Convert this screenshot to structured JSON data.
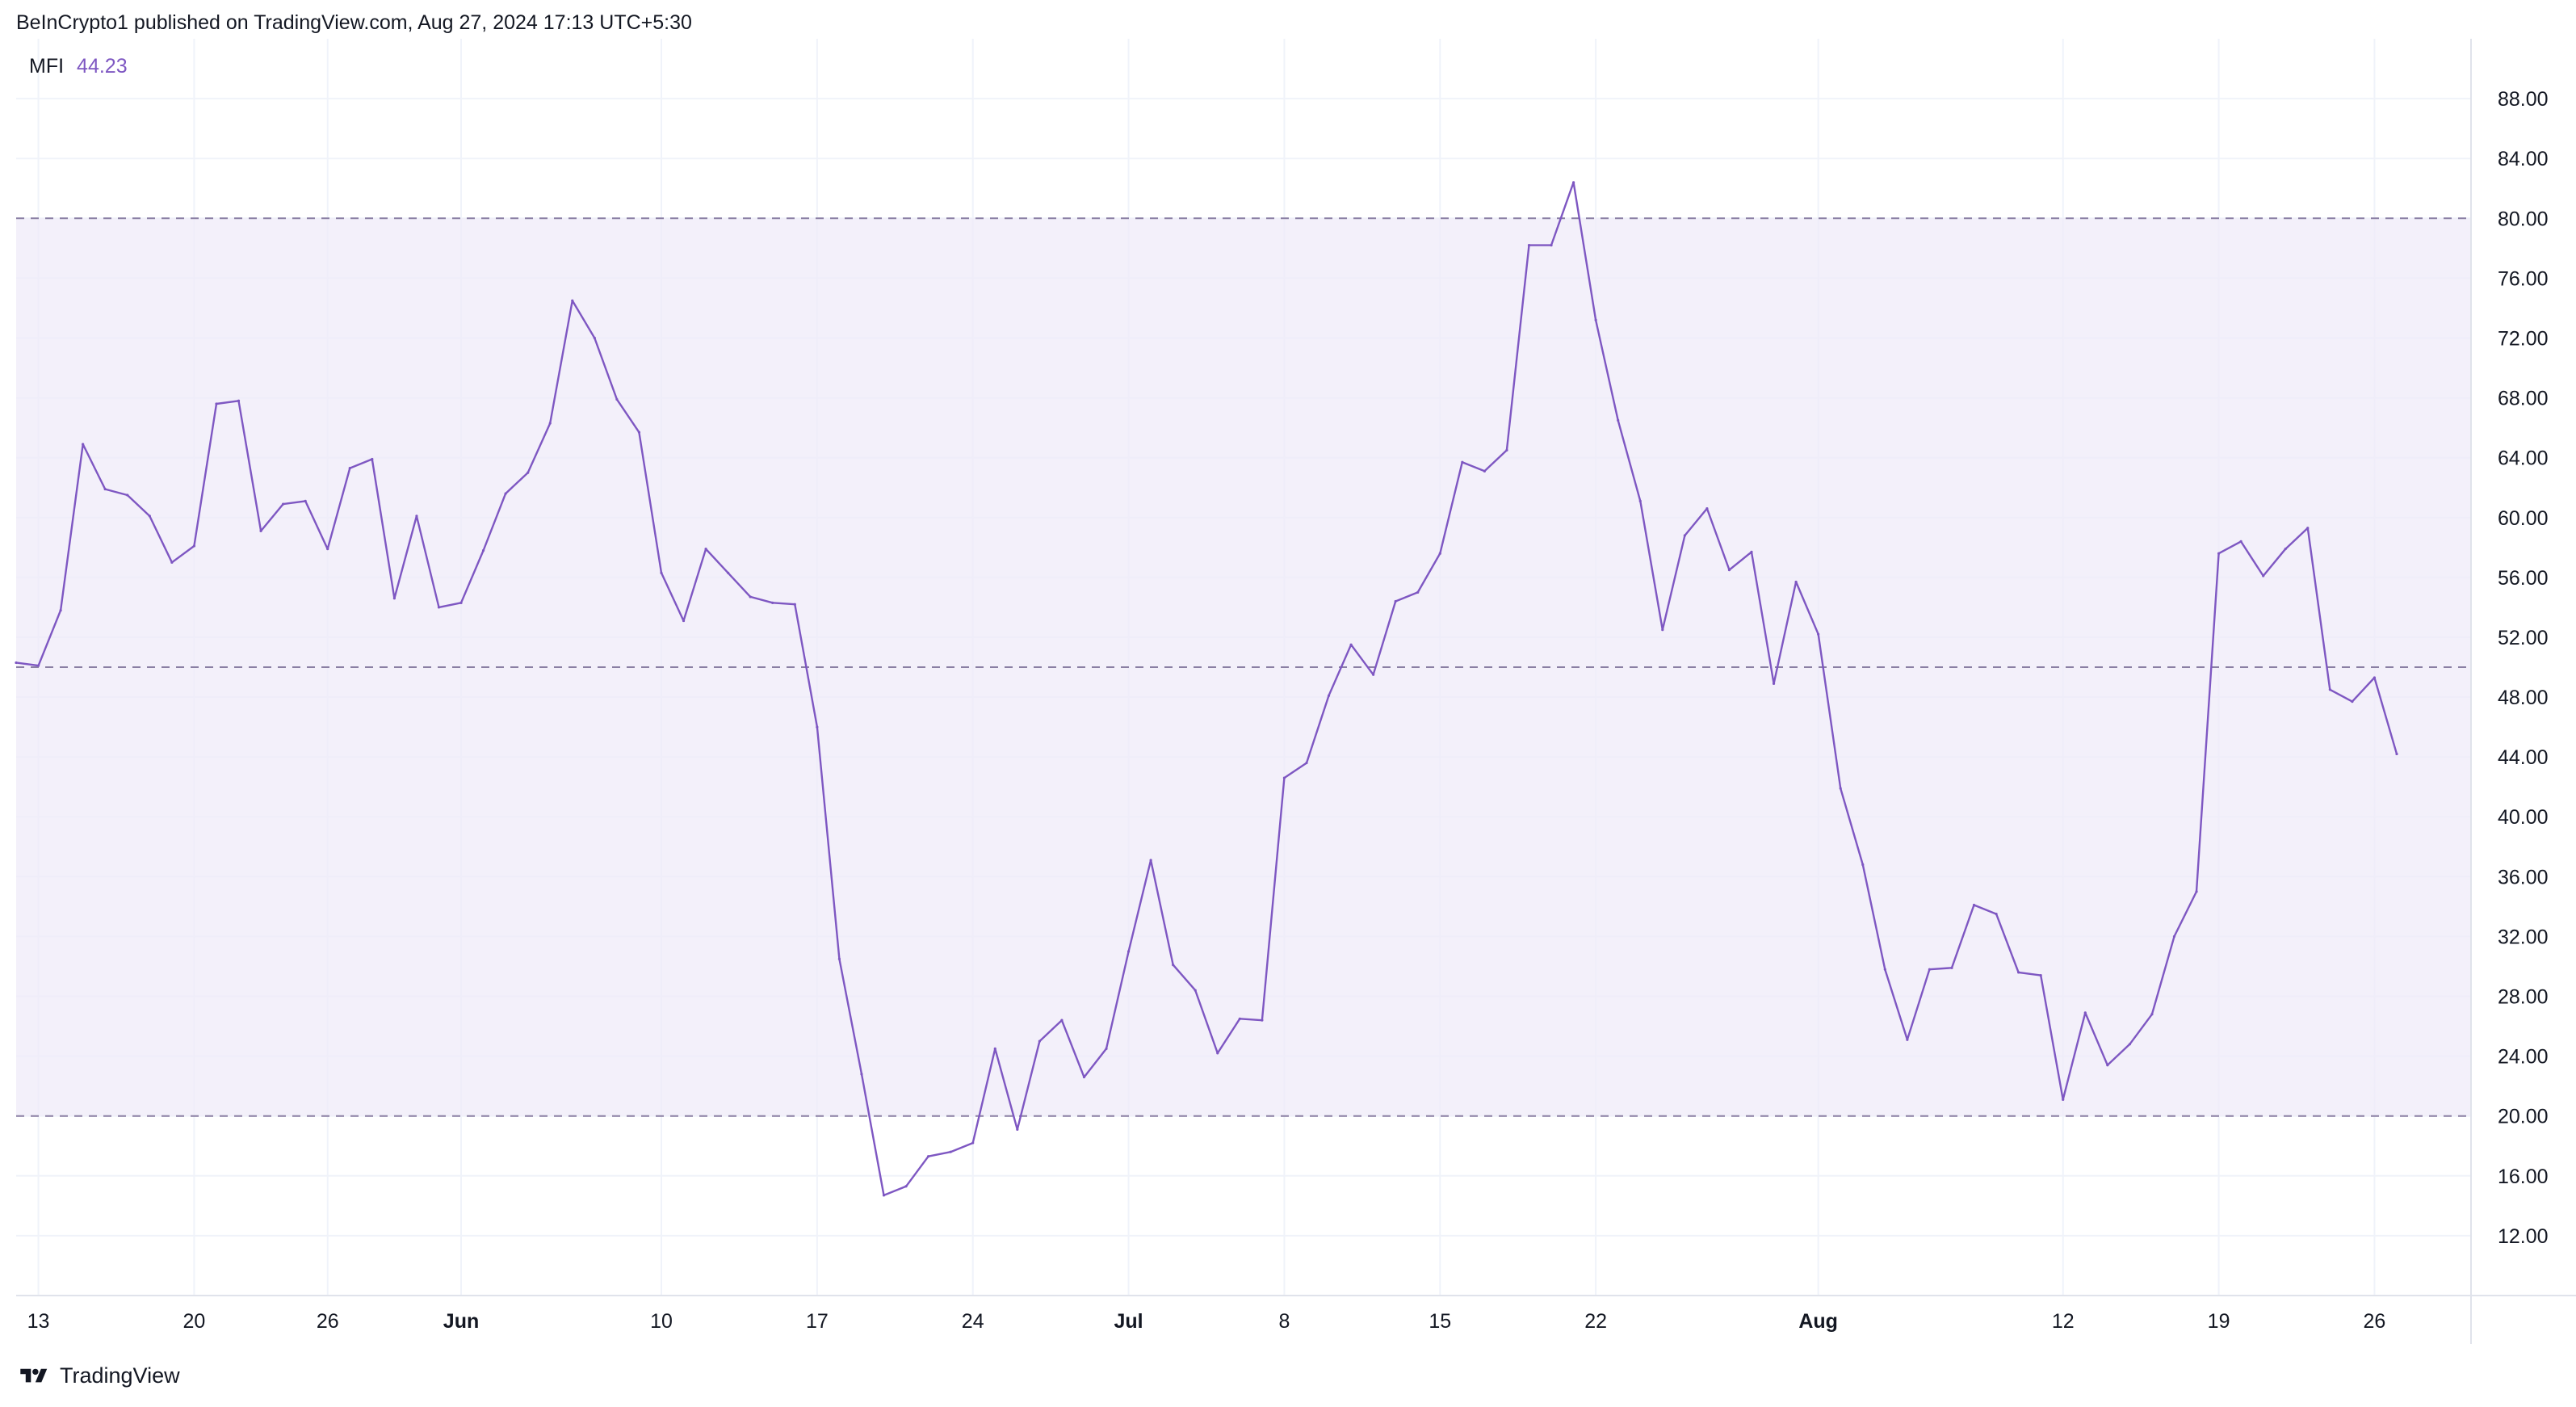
{
  "header": {
    "published_text": "BeInCrypto1 published on TradingView.com, Aug 27, 2024 17:13 UTC+5:30"
  },
  "legend": {
    "indicator": "MFI",
    "value": "44.23"
  },
  "footer": {
    "brand": "TradingView",
    "logo_icon": "tradingview-logo-icon"
  },
  "colors": {
    "line": "#7e57c2",
    "band_fill": "#efebf8",
    "band_lines": "#8a7fa3",
    "grid": "#f0f3fa",
    "axis_text": "#131722"
  },
  "chart_data": {
    "type": "line",
    "title": "",
    "xlabel": "",
    "ylabel": "",
    "ylim": [
      8,
      92
    ],
    "y_ticks": [
      "12.00",
      "16.00",
      "20.00",
      "24.00",
      "28.00",
      "32.00",
      "36.00",
      "40.00",
      "44.00",
      "48.00",
      "52.00",
      "56.00",
      "60.00",
      "64.00",
      "68.00",
      "72.00",
      "76.00",
      "80.00",
      "84.00",
      "88.00"
    ],
    "x_ticks": [
      {
        "label": "13",
        "bold": false,
        "index": 1
      },
      {
        "label": "20",
        "bold": false,
        "index": 8
      },
      {
        "label": "26",
        "bold": false,
        "index": 14
      },
      {
        "label": "Jun",
        "bold": true,
        "index": 20
      },
      {
        "label": "10",
        "bold": false,
        "index": 29
      },
      {
        "label": "17",
        "bold": false,
        "index": 36
      },
      {
        "label": "24",
        "bold": false,
        "index": 43
      },
      {
        "label": "Jul",
        "bold": true,
        "index": 50
      },
      {
        "label": "8",
        "bold": false,
        "index": 57
      },
      {
        "label": "15",
        "bold": false,
        "index": 64
      },
      {
        "label": "22",
        "bold": false,
        "index": 71
      },
      {
        "label": "Aug",
        "bold": true,
        "index": 81
      },
      {
        "label": "12",
        "bold": false,
        "index": 92
      },
      {
        "label": "19",
        "bold": false,
        "index": 99
      },
      {
        "label": "26",
        "bold": false,
        "index": 106
      }
    ],
    "bands": {
      "upper": 80,
      "middle": 50,
      "lower": 20
    },
    "series": [
      {
        "values": [
          50.3,
          50.1,
          53.8,
          64.9,
          61.9,
          61.5,
          60.1,
          57.0,
          58.1,
          67.6,
          67.8,
          59.1,
          60.9,
          61.1,
          57.9,
          63.3,
          63.9,
          54.6,
          60.1,
          54.0,
          54.3,
          57.8,
          61.6,
          63.0,
          66.3,
          74.5,
          72.0,
          67.9,
          65.7,
          56.3,
          53.1,
          57.9,
          56.3,
          54.7,
          54.3,
          54.2,
          46.0,
          30.5,
          22.8,
          14.7,
          15.3,
          17.3,
          17.6,
          18.2,
          24.5,
          19.1,
          25.0,
          26.4,
          22.6,
          24.5,
          31.0,
          37.1,
          30.1,
          28.4,
          24.2,
          26.5,
          26.4,
          42.6,
          43.6,
          48.1,
          51.5,
          49.5,
          54.4,
          55.0,
          57.6,
          63.7,
          63.1,
          64.5,
          78.2,
          78.2,
          82.4,
          73.2,
          66.5,
          61.1,
          52.5,
          58.8,
          60.6,
          56.5,
          57.7,
          48.9,
          55.7,
          52.2,
          41.9,
          36.8,
          29.8,
          25.1,
          29.8,
          29.9,
          34.1,
          33.5,
          29.6,
          29.4,
          21.1,
          26.9,
          23.4,
          24.8,
          26.8,
          32.0,
          35.0,
          57.6,
          58.4,
          56.1,
          57.9,
          59.3,
          48.5,
          47.7,
          49.3,
          44.2
        ]
      }
    ]
  }
}
